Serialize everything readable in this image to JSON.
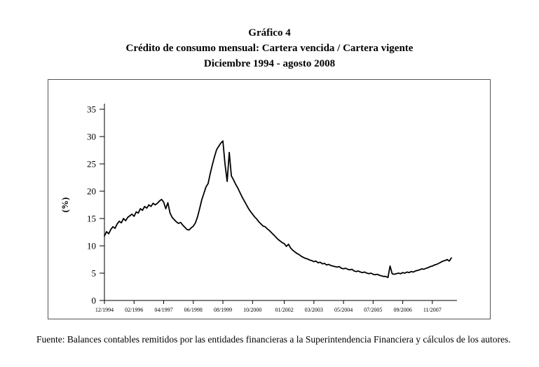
{
  "title": {
    "line1": "Gráfico 4",
    "line2": "Crédito de consumo mensual: Cartera vencida / Cartera vigente",
    "line3": "Diciembre 1994 - agosto 2008"
  },
  "chart_data": {
    "type": "line",
    "title": "Crédito de consumo mensual: Cartera vencida / Cartera vigente, Diciembre 1994 - agosto 2008",
    "xlabel": "",
    "ylabel": "(%)",
    "ylim": [
      0,
      35
    ],
    "y_ticks": [
      0,
      5,
      10,
      15,
      20,
      25,
      30,
      35
    ],
    "x_unit": "monthly observations from 12/1994 (index 0) to 08/2008 (index 164)",
    "x_ticks": [
      {
        "label": "12/1994",
        "index": 0
      },
      {
        "label": "02/1996",
        "index": 14
      },
      {
        "label": "04/1997",
        "index": 28
      },
      {
        "label": "06/1998",
        "index": 42
      },
      {
        "label": "08/1999",
        "index": 56
      },
      {
        "label": "10/2000",
        "index": 70
      },
      {
        "label": "01/2002",
        "index": 85
      },
      {
        "label": "03/2003",
        "index": 99
      },
      {
        "label": "05/2004",
        "index": 113
      },
      {
        "label": "07/2005",
        "index": 127
      },
      {
        "label": "09/2006",
        "index": 141
      },
      {
        "label": "11/2007",
        "index": 155
      }
    ],
    "line_color": "#000000",
    "grid": false,
    "legend": false,
    "values": [
      11.8,
      12.6,
      12.2,
      13.0,
      13.5,
      13.2,
      14.0,
      14.5,
      14.2,
      15.0,
      14.6,
      15.2,
      15.5,
      15.8,
      15.4,
      16.2,
      16.0,
      16.8,
      16.5,
      17.2,
      16.9,
      17.5,
      17.2,
      17.8,
      17.5,
      17.8,
      18.2,
      18.5,
      18.0,
      16.8,
      17.9,
      16.0,
      15.2,
      14.8,
      14.4,
      14.1,
      14.3,
      13.8,
      13.4,
      13.0,
      12.9,
      13.3,
      13.6,
      14.2,
      15.3,
      16.8,
      18.4,
      19.6,
      20.8,
      21.4,
      23.2,
      24.8,
      26.3,
      27.6,
      28.2,
      28.8,
      29.2,
      25.0,
      21.8,
      27.1,
      22.8,
      22.1,
      21.3,
      20.6,
      19.8,
      19.0,
      18.3,
      17.6,
      16.9,
      16.3,
      15.8,
      15.3,
      14.9,
      14.4,
      14.0,
      13.6,
      13.5,
      13.1,
      12.8,
      12.4,
      12.0,
      11.6,
      11.2,
      10.9,
      10.6,
      10.4,
      9.9,
      10.3,
      9.6,
      9.2,
      8.9,
      8.6,
      8.4,
      8.1,
      7.9,
      7.7,
      7.6,
      7.4,
      7.3,
      7.1,
      7.2,
      6.9,
      7.0,
      6.7,
      6.8,
      6.5,
      6.6,
      6.4,
      6.3,
      6.2,
      6.1,
      6.2,
      5.9,
      5.8,
      5.9,
      5.7,
      5.6,
      5.7,
      5.4,
      5.3,
      5.4,
      5.2,
      5.1,
      5.2,
      5.0,
      4.9,
      5.0,
      4.8,
      4.7,
      4.8,
      4.6,
      4.5,
      4.4,
      4.4,
      4.2,
      6.3,
      4.9,
      4.8,
      4.9,
      5.0,
      4.9,
      5.1,
      5.0,
      5.2,
      5.1,
      5.3,
      5.2,
      5.4,
      5.5,
      5.6,
      5.8,
      5.7,
      5.9,
      6.0,
      6.2,
      6.3,
      6.5,
      6.6,
      6.8,
      7.0,
      7.2,
      7.3,
      7.5,
      7.2,
      7.8
    ]
  },
  "footer": {
    "source": "Fuente: Balances contables remitidos por las entidades financieras a la Superintendencia Financiera y cálculos de los autores."
  }
}
